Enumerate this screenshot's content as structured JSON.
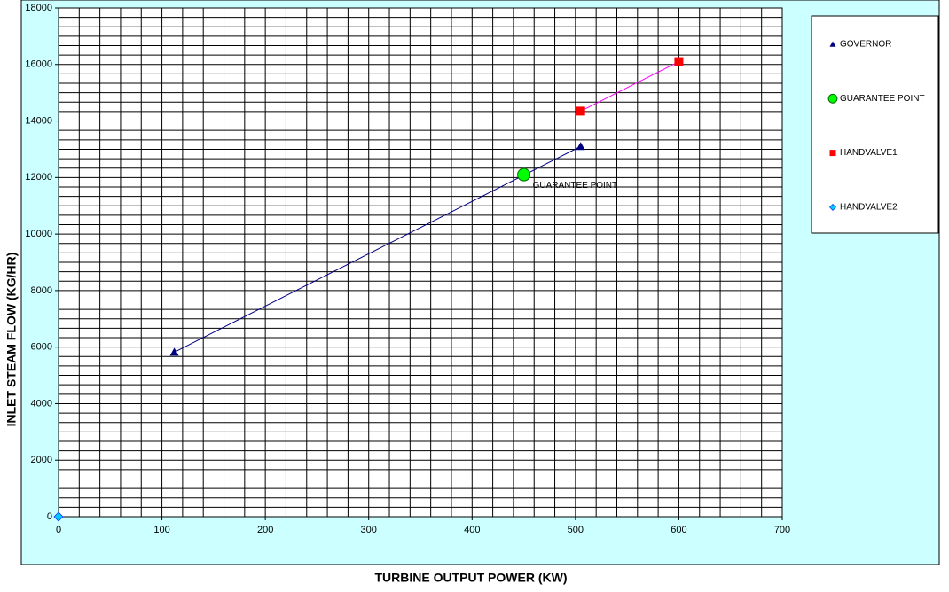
{
  "chart_data": {
    "type": "scatter",
    "x_label": "TURBINE OUTPUT POWER (KW)",
    "y_label": "INLET STEAM FLOW (KG/HR)",
    "xlim": [
      0,
      700
    ],
    "xticks": [
      0,
      100,
      200,
      300,
      400,
      500,
      600,
      700
    ],
    "ylim": [
      0,
      18000
    ],
    "yticks": [
      0,
      2000,
      4000,
      6000,
      8000,
      10000,
      12000,
      14000,
      16000,
      18000
    ],
    "grid": true,
    "legend": "right",
    "series": [
      {
        "name": "GOVERNOR",
        "color": "#000080",
        "line_color": "#000080",
        "marker": "triangle",
        "x": [
          112,
          505
        ],
        "values": [
          5820,
          13100
        ]
      },
      {
        "name": "GUARANTEE POINT",
        "color": "#00ff00",
        "marker": "circle",
        "show_label": true,
        "x": [
          450
        ],
        "values": [
          12100
        ]
      },
      {
        "name": "HANDVALVE1",
        "color": "#ff0000",
        "line_color": "#ff00ff",
        "marker": "square",
        "x": [
          505,
          600
        ],
        "values": [
          14350,
          16100
        ]
      },
      {
        "name": "HANDVALVE2",
        "color": "#00ccff",
        "marker": "diamond",
        "x": [
          0
        ],
        "values": [
          0
        ]
      }
    ]
  }
}
